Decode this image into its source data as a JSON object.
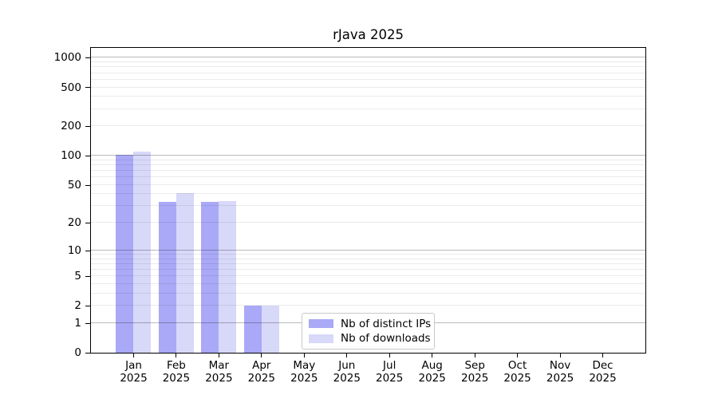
{
  "title": "rJava 2025",
  "chart_data": {
    "type": "bar",
    "title": "rJava 2025",
    "categories": [
      "Jan",
      "Feb",
      "Mar",
      "Apr",
      "May",
      "Jun",
      "Jul",
      "Aug",
      "Sep",
      "Oct",
      "Nov",
      "Dec"
    ],
    "year_label": "2025",
    "series": [
      {
        "name": "Nb of distinct IPs",
        "color": "#a9a9f7",
        "values": [
          102,
          33,
          33,
          2,
          0,
          0,
          0,
          0,
          0,
          0,
          0,
          0
        ]
      },
      {
        "name": "Nb of downloads",
        "color": "#d8d8f9",
        "values": [
          111,
          41,
          34,
          2,
          0,
          0,
          0,
          0,
          0,
          0,
          0,
          0
        ]
      }
    ],
    "yscale": "log1p",
    "ylim": [
      0,
      1262
    ],
    "yticks": [
      0,
      1,
      2,
      5,
      10,
      20,
      50,
      100,
      200,
      500,
      1000
    ],
    "grid": {
      "major": [
        1,
        10,
        100,
        1000
      ],
      "minor": [
        2,
        3,
        4,
        5,
        6,
        7,
        8,
        9,
        20,
        30,
        40,
        50,
        60,
        70,
        80,
        90,
        200,
        300,
        400,
        500,
        600,
        700,
        800,
        900
      ]
    },
    "legend_position": "inside-bottom-center",
    "colors": {
      "distinct_ips": "#a9a9f7",
      "downloads": "#d8d8f9"
    }
  }
}
